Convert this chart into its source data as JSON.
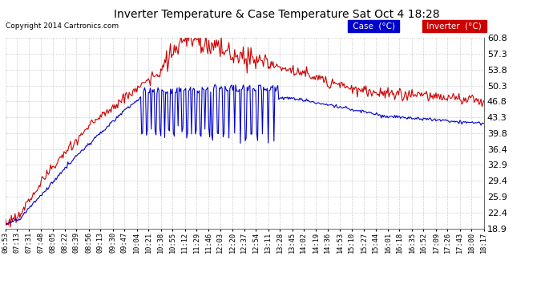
{
  "title": "Inverter Temperature & Case Temperature Sat Oct 4 18:28",
  "copyright": "Copyright 2014 Cartronics.com",
  "background_color": "#ffffff",
  "grid_color": "#aaaaaa",
  "grid_style": "--",
  "ylim": [
    18.9,
    60.8
  ],
  "yticks": [
    18.9,
    22.4,
    25.9,
    29.4,
    32.9,
    36.4,
    39.8,
    43.3,
    46.8,
    50.3,
    53.8,
    57.3,
    60.8
  ],
  "xtick_labels": [
    "06:53",
    "07:13",
    "07:31",
    "07:48",
    "08:05",
    "08:22",
    "08:39",
    "08:56",
    "09:13",
    "09:30",
    "09:47",
    "10:04",
    "10:21",
    "10:38",
    "10:55",
    "11:12",
    "11:29",
    "11:46",
    "12:03",
    "12:20",
    "12:37",
    "12:54",
    "13:11",
    "13:28",
    "13:45",
    "14:02",
    "14:19",
    "14:36",
    "14:53",
    "15:10",
    "15:27",
    "15:44",
    "16:01",
    "16:18",
    "16:35",
    "16:52",
    "17:09",
    "17:26",
    "17:43",
    "18:00",
    "18:17"
  ],
  "case_color": "#0000cc",
  "inverter_color": "#cc0000",
  "legend_case_text": "Case  (°C)",
  "legend_inv_text": "Inverter  (°C)"
}
